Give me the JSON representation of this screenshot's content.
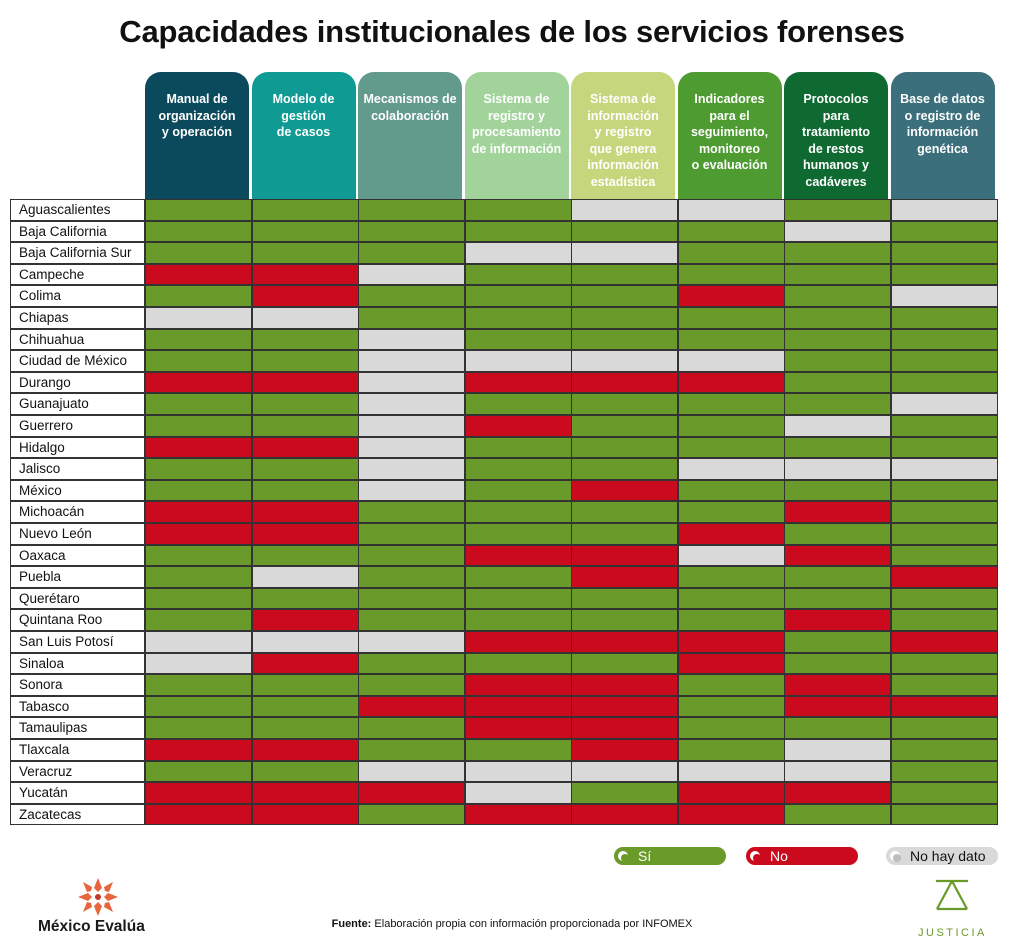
{
  "title": "Capacidades institucionales de los servicios forenses",
  "colors": {
    "si": "#6a9a2a",
    "no": "#cc0a1e",
    "nd": "#d9d9d9"
  },
  "chart_data": {
    "type": "table",
    "columns": [
      {
        "label": "Manual de\norganización\ny operación",
        "color": "#0b4a5c"
      },
      {
        "label": "Modelo de\ngestión\nde casos",
        "color": "#0f9a94"
      },
      {
        "label": "Mecanismos de\ncolaboración",
        "color": "#629a8c"
      },
      {
        "label": "Sistema de\nregistro y\nprocesamiento\nde información",
        "color": "#a2d39b"
      },
      {
        "label": "Sistema de\ninformación\ny registro\nque genera\ninformación\nestadística",
        "color": "#c6d67c"
      },
      {
        "label": "Indicadores\npara el\nseguimiento,\nmonitoreo\no evaluación",
        "color": "#4d9b31"
      },
      {
        "label": "Protocolos\npara\ntratamiento\nde restos\nhumanos y\ncadáveres",
        "color": "#0f6a32"
      },
      {
        "label": "Base de datos\no registro de\ninformación\ngenética",
        "color": "#3a6f7b"
      }
    ],
    "rows": [
      {
        "state": "Aguascalientes",
        "values": [
          "si",
          "si",
          "si",
          "si",
          "nd",
          "nd",
          "si",
          "nd"
        ]
      },
      {
        "state": "Baja California",
        "values": [
          "si",
          "si",
          "si",
          "si",
          "si",
          "si",
          "nd",
          "si"
        ]
      },
      {
        "state": "Baja California Sur",
        "values": [
          "si",
          "si",
          "si",
          "nd",
          "nd",
          "si",
          "si",
          "si"
        ]
      },
      {
        "state": "Campeche",
        "values": [
          "no",
          "no",
          "nd",
          "si",
          "si",
          "si",
          "si",
          "si"
        ]
      },
      {
        "state": "Colima",
        "values": [
          "si",
          "no",
          "si",
          "si",
          "si",
          "no",
          "si",
          "nd"
        ]
      },
      {
        "state": "Chiapas",
        "values": [
          "nd",
          "nd",
          "si",
          "si",
          "si",
          "si",
          "si",
          "si"
        ]
      },
      {
        "state": "Chihuahua",
        "values": [
          "si",
          "si",
          "nd",
          "si",
          "si",
          "si",
          "si",
          "si"
        ]
      },
      {
        "state": "Ciudad de México",
        "values": [
          "si",
          "si",
          "nd",
          "nd",
          "nd",
          "nd",
          "si",
          "si"
        ]
      },
      {
        "state": "Durango",
        "values": [
          "no",
          "no",
          "nd",
          "no",
          "no",
          "no",
          "si",
          "si"
        ]
      },
      {
        "state": "Guanajuato",
        "values": [
          "si",
          "si",
          "nd",
          "si",
          "si",
          "si",
          "si",
          "nd"
        ]
      },
      {
        "state": "Guerrero",
        "values": [
          "si",
          "si",
          "nd",
          "no",
          "si",
          "si",
          "nd",
          "si"
        ]
      },
      {
        "state": "Hidalgo",
        "values": [
          "no",
          "no",
          "nd",
          "si",
          "si",
          "si",
          "si",
          "si"
        ]
      },
      {
        "state": "Jalisco",
        "values": [
          "si",
          "si",
          "nd",
          "si",
          "si",
          "nd",
          "nd",
          "nd"
        ]
      },
      {
        "state": "México",
        "values": [
          "si",
          "si",
          "nd",
          "si",
          "no",
          "si",
          "si",
          "si"
        ]
      },
      {
        "state": "Michoacán",
        "values": [
          "no",
          "no",
          "si",
          "si",
          "si",
          "si",
          "no",
          "si"
        ]
      },
      {
        "state": "Nuevo León",
        "values": [
          "no",
          "no",
          "si",
          "si",
          "si",
          "no",
          "si",
          "si"
        ]
      },
      {
        "state": "Oaxaca",
        "values": [
          "si",
          "si",
          "si",
          "no",
          "no",
          "nd",
          "no",
          "si"
        ]
      },
      {
        "state": "Puebla",
        "values": [
          "si",
          "nd",
          "si",
          "si",
          "no",
          "si",
          "si",
          "no"
        ]
      },
      {
        "state": "Querétaro",
        "values": [
          "si",
          "si",
          "si",
          "si",
          "si",
          "si",
          "si",
          "si"
        ]
      },
      {
        "state": "Quintana Roo",
        "values": [
          "si",
          "no",
          "si",
          "si",
          "si",
          "si",
          "no",
          "si"
        ]
      },
      {
        "state": "San Luis Potosí",
        "values": [
          "nd",
          "nd",
          "nd",
          "no",
          "no",
          "no",
          "si",
          "no"
        ]
      },
      {
        "state": "Sinaloa",
        "values": [
          "nd",
          "no",
          "si",
          "si",
          "si",
          "no",
          "si",
          "si"
        ]
      },
      {
        "state": "Sonora",
        "values": [
          "si",
          "si",
          "si",
          "no",
          "no",
          "si",
          "no",
          "si"
        ]
      },
      {
        "state": "Tabasco",
        "values": [
          "si",
          "si",
          "no",
          "no",
          "no",
          "si",
          "no",
          "no"
        ]
      },
      {
        "state": "Tamaulipas",
        "values": [
          "si",
          "si",
          "si",
          "no",
          "no",
          "si",
          "si",
          "si"
        ]
      },
      {
        "state": "Tlaxcala",
        "values": [
          "no",
          "no",
          "si",
          "si",
          "no",
          "si",
          "nd",
          "si"
        ]
      },
      {
        "state": "Veracruz",
        "values": [
          "si",
          "si",
          "nd",
          "nd",
          "nd",
          "nd",
          "nd",
          "si"
        ]
      },
      {
        "state": "Yucatán",
        "values": [
          "no",
          "no",
          "no",
          "nd",
          "si",
          "no",
          "no",
          "si"
        ]
      },
      {
        "state": "Zacatecas",
        "values": [
          "no",
          "no",
          "si",
          "no",
          "no",
          "no",
          "si",
          "si"
        ]
      }
    ]
  },
  "legend": [
    {
      "key": "si",
      "label": "Sí"
    },
    {
      "key": "no",
      "label": "No"
    },
    {
      "key": "nd",
      "label": "No hay dato"
    }
  ],
  "source": {
    "bold": "Fuente:",
    "text": " Elaboración propia con información proporcionada por INFOMEX"
  },
  "logos": {
    "left": "México Evalúa",
    "right": "JUSTICIA"
  }
}
